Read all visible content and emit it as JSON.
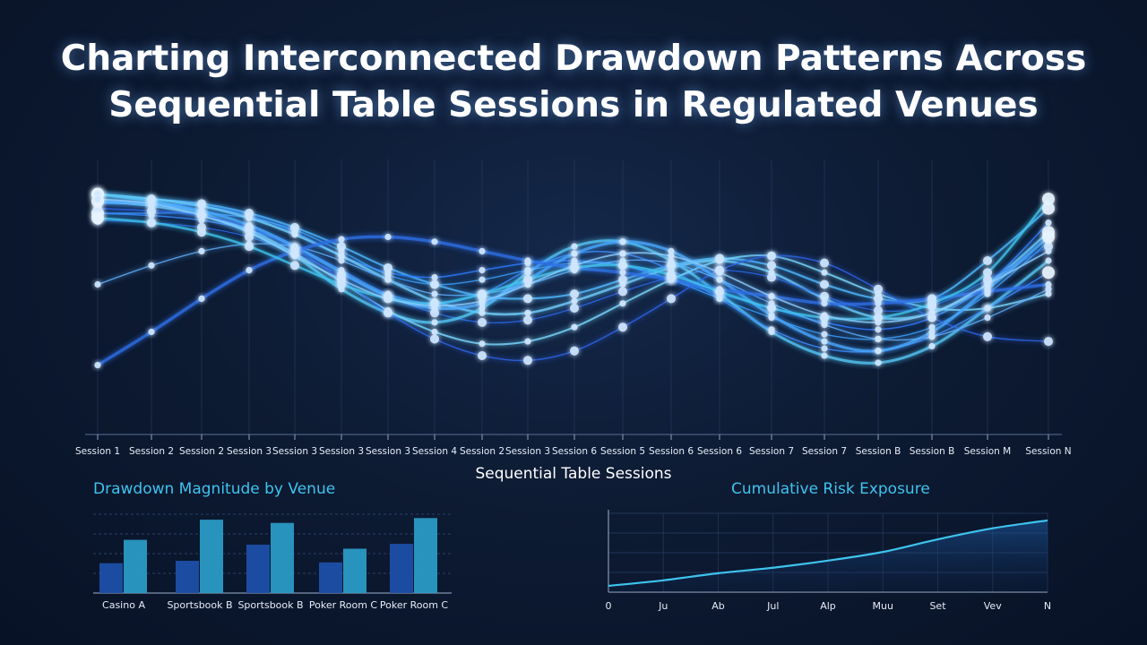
{
  "title_line1": "Charting Interconnected Drawdown Patterns Across",
  "title_line2": "Sequential Table Sessions in Regulated Venues",
  "colors": {
    "background": "#0d1b33",
    "accent_cyan": "#3fc3ee",
    "accent_blue": "#1f66e0",
    "bar_dark": "#1e4fa8",
    "bar_light": "#2a9ac4",
    "grid": "#2b3f66"
  },
  "chart_data": [
    {
      "type": "line",
      "xlabel": "Sequential Table Sessions",
      "categories": [
        "Session 1",
        "Session 2",
        "Session 2",
        "Session 3",
        "Session 3",
        "Session 3",
        "Session 3",
        "Session 4",
        "Session 2",
        "Session 3",
        "Session 6",
        "Session 5",
        "Session 6",
        "Session 6",
        "Session 7",
        "Session 7",
        "Session B",
        "Session B",
        "Session M",
        "Session N"
      ],
      "y_axis_visible": false,
      "ylim": [
        0,
        1
      ],
      "grid": "vertical",
      "series": [
        {
          "values": [
            0.88,
            0.86,
            0.84,
            0.8,
            0.74,
            0.66,
            0.57,
            0.5,
            0.45,
            0.44,
            0.46,
            0.52,
            0.58,
            0.61,
            0.58,
            0.5,
            0.44,
            0.44,
            0.6,
            0.82
          ]
        },
        {
          "values": [
            0.84,
            0.84,
            0.83,
            0.79,
            0.72,
            0.62,
            0.55,
            0.53,
            0.56,
            0.59,
            0.6,
            0.58,
            0.52,
            0.46,
            0.4,
            0.34,
            0.31,
            0.36,
            0.5,
            0.76
          ]
        },
        {
          "values": [
            0.8,
            0.8,
            0.8,
            0.78,
            0.73,
            0.64,
            0.54,
            0.5,
            0.52,
            0.56,
            0.59,
            0.58,
            0.52,
            0.44,
            0.36,
            0.29,
            0.27,
            0.32,
            0.46,
            0.68
          ]
        },
        {
          "values": [
            0.88,
            0.86,
            0.83,
            0.78,
            0.71,
            0.62,
            0.52,
            0.43,
            0.38,
            0.38,
            0.43,
            0.5,
            0.57,
            0.6,
            0.55,
            0.44,
            0.36,
            0.38,
            0.5,
            0.72
          ]
        },
        {
          "values": [
            0.77,
            0.76,
            0.74,
            0.7,
            0.63,
            0.54,
            0.45,
            0.38,
            0.34,
            0.35,
            0.4,
            0.47,
            0.53,
            0.56,
            0.53,
            0.45,
            0.39,
            0.41,
            0.52,
            0.66
          ]
        },
        {
          "values": [
            0.88,
            0.85,
            0.8,
            0.72,
            0.62,
            0.48,
            0.38,
            0.34,
            0.4,
            0.55,
            0.66,
            0.68,
            0.6,
            0.46,
            0.3,
            0.2,
            0.17,
            0.24,
            0.4,
            0.6
          ]
        },
        {
          "values": [
            0.8,
            0.79,
            0.77,
            0.73,
            0.66,
            0.56,
            0.46,
            0.42,
            0.46,
            0.56,
            0.63,
            0.63,
            0.56,
            0.44,
            0.31,
            0.23,
            0.22,
            0.28,
            0.4,
            0.55
          ]
        },
        {
          "values": [
            0.85,
            0.83,
            0.79,
            0.73,
            0.63,
            0.51,
            0.39,
            0.3,
            0.25,
            0.26,
            0.32,
            0.42,
            0.52,
            0.6,
            0.62,
            0.55,
            0.46,
            0.4,
            0.4,
            0.46
          ]
        },
        {
          "values": [
            0.82,
            0.81,
            0.79,
            0.74,
            0.65,
            0.52,
            0.38,
            0.27,
            0.2,
            0.18,
            0.22,
            0.32,
            0.44,
            0.56,
            0.62,
            0.59,
            0.48,
            0.36,
            0.28,
            0.26
          ]
        },
        {
          "values": [
            0.85,
            0.84,
            0.81,
            0.75,
            0.66,
            0.55,
            0.45,
            0.4,
            0.42,
            0.52,
            0.63,
            0.68,
            0.64,
            0.52,
            0.37,
            0.26,
            0.22,
            0.3,
            0.48,
            0.7
          ]
        },
        {
          "values": [
            0.5,
            0.58,
            0.64,
            0.67,
            0.66,
            0.6,
            0.52,
            0.46,
            0.46,
            0.5,
            0.56,
            0.6,
            0.59,
            0.52,
            0.42,
            0.33,
            0.27,
            0.28,
            0.36,
            0.48
          ]
        },
        {
          "values": [
            0.16,
            0.3,
            0.44,
            0.56,
            0.64,
            0.69,
            0.7,
            0.68,
            0.64,
            0.6,
            0.57,
            0.55,
            0.52,
            0.48,
            0.45,
            0.42,
            0.42,
            0.44,
            0.47,
            0.5
          ]
        },
        {
          "values": [
            0.78,
            0.76,
            0.72,
            0.66,
            0.58,
            0.5,
            0.44,
            0.42,
            0.46,
            0.52,
            0.57,
            0.58,
            0.54,
            0.47,
            0.4,
            0.36,
            0.36,
            0.42,
            0.55,
            0.86
          ]
        },
        {
          "values": [
            0.86,
            0.84,
            0.79,
            0.72,
            0.62,
            0.52,
            0.44,
            0.41,
            0.43,
            0.5,
            0.58,
            0.63,
            0.62,
            0.55,
            0.45,
            0.37,
            0.34,
            0.38,
            0.5,
            0.64
          ]
        }
      ]
    },
    {
      "type": "bar",
      "title": "Drawdown Magnitude by Venue",
      "categories": [
        "Casino A",
        "Sportsbook B",
        "Sportsbook B",
        "Poker Room C",
        "Poker Room C"
      ],
      "ylim": [
        0,
        100
      ],
      "series": [
        {
          "values": [
            37,
            40,
            60,
            38,
            61
          ]
        },
        {
          "values": [
            66,
            91,
            87,
            55,
            93
          ]
        }
      ]
    },
    {
      "type": "area",
      "title": "Cumulative Risk Exposure",
      "categories": [
        "0",
        "Ju",
        "Ab",
        "Jul",
        "Alp",
        "Muu",
        "Set",
        "Vev",
        "N"
      ],
      "ylim": [
        0,
        100
      ],
      "values": [
        8,
        15,
        24,
        31,
        40,
        51,
        67,
        81,
        91
      ]
    }
  ]
}
